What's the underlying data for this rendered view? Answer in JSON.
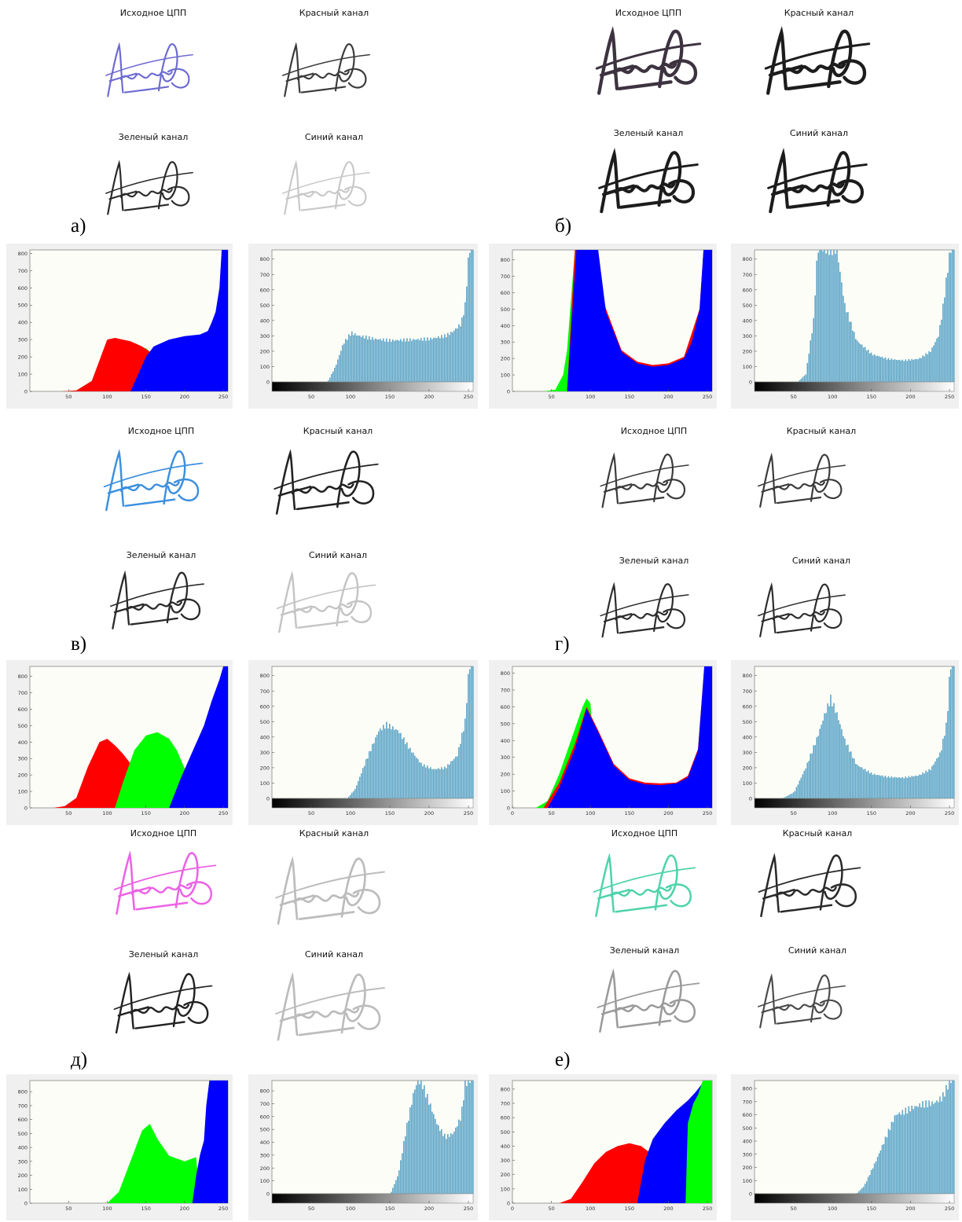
{
  "colors": {
    "red": "#ff0000",
    "green": "#00ff00",
    "blue": "#0000ff",
    "bar": "#5ea6c8",
    "plot_bg": "#fdfdf7",
    "frame_bg": "#f0f0f0"
  },
  "channel_labels": {
    "original": "Исходное ЦПП",
    "red": "Красный канал",
    "green": "Зеленый канал",
    "blue": "Синий канал"
  },
  "signature_colors": {
    "a": {
      "original": "#6d6ad2",
      "red": "#3a3a3a",
      "green": "#2a2a2a",
      "blue": "#c8c8c8"
    },
    "b": {
      "original": "#3d3340",
      "red": "#1c1c1c",
      "green": "#1c1c1c",
      "blue": "#1c1c1c"
    },
    "v": {
      "original": "#3c8fde",
      "red": "#222222",
      "green": "#2a2a2a",
      "blue": "#c4c4c4"
    },
    "g": {
      "original": "#3a3a3a",
      "red": "#3a3a3a",
      "green": "#2c2c2c",
      "blue": "#2c2c2c"
    },
    "d": {
      "original": "#ec62e6",
      "red": "#bcbcbc",
      "green": "#222222",
      "blue": "#bcbcbc"
    },
    "e": {
      "original": "#4fd3aa",
      "red": "#2a2a2a",
      "green": "#9a9a9a",
      "blue": "#4a4a4a"
    }
  },
  "panel_letters": {
    "a": "а)",
    "b": "б)",
    "v": "в)",
    "g": "г)",
    "d": "д)",
    "e": "е)"
  },
  "chart_data": [
    {
      "panel": "а)",
      "type": "area",
      "kind": "rgb",
      "xlim": [
        0,
        256
      ],
      "ylim": [
        0,
        820
      ],
      "x_ticks": [
        50,
        100,
        150,
        200,
        250
      ],
      "y_ticks": [
        0,
        100,
        200,
        300,
        400,
        500,
        600,
        700,
        800
      ],
      "series": [
        {
          "color": "#00ff00",
          "x": [
            0,
            40,
            60,
            80,
            95,
            100,
            110,
            130,
            150,
            155,
            160
          ],
          "y": [
            0,
            0,
            5,
            60,
            220,
            280,
            290,
            270,
            250,
            230,
            0
          ]
        },
        {
          "color": "#ff0000",
          "x": [
            0,
            40,
            60,
            80,
            95,
            100,
            110,
            120,
            130,
            145,
            155,
            160
          ],
          "y": [
            0,
            0,
            5,
            60,
            240,
            300,
            310,
            300,
            290,
            260,
            230,
            0
          ]
        },
        {
          "color": "#0000ff",
          "x": [
            0,
            130,
            150,
            160,
            180,
            200,
            220,
            230,
            235,
            240,
            245,
            248,
            256
          ],
          "y": [
            0,
            0,
            200,
            260,
            300,
            320,
            330,
            350,
            400,
            460,
            600,
            820,
            820
          ]
        }
      ]
    },
    {
      "panel": "а)",
      "type": "bar",
      "kind": "gray",
      "xlim": [
        0,
        256
      ],
      "ylim": [
        0,
        860
      ],
      "x_ticks": [
        50,
        100,
        150,
        200,
        250
      ],
      "y_ticks": [
        0,
        100,
        200,
        300,
        400,
        500,
        600,
        700,
        800
      ],
      "series": [
        {
          "color": "#5ea6c8",
          "x": [
            0,
            70,
            80,
            90,
            100,
            110,
            130,
            150,
            200,
            220,
            230,
            240,
            245,
            250,
            256
          ],
          "y": [
            0,
            0,
            100,
            250,
            320,
            300,
            280,
            270,
            280,
            300,
            330,
            380,
            500,
            860,
            860
          ]
        }
      ]
    },
    {
      "panel": "б)",
      "type": "area",
      "kind": "rgb",
      "xlim": [
        0,
        256
      ],
      "ylim": [
        0,
        860
      ],
      "x_ticks": [
        50,
        100,
        150,
        200,
        250
      ],
      "y_ticks": [
        0,
        100,
        200,
        300,
        400,
        500,
        600,
        700,
        800
      ],
      "series": [
        {
          "color": "#00ff00",
          "x": [
            0,
            40,
            55,
            65,
            70,
            75,
            80,
            100
          ],
          "y": [
            0,
            0,
            10,
            100,
            250,
            550,
            860,
            0
          ]
        },
        {
          "color": "#ff0000",
          "x": [
            0,
            70,
            80,
            100,
            120,
            140,
            160,
            180,
            200,
            220,
            240,
            245,
            256
          ],
          "y": [
            0,
            0,
            860,
            860,
            500,
            250,
            180,
            160,
            170,
            210,
            500,
            860,
            860
          ]
        },
        {
          "color": "#0000ff",
          "x": [
            0,
            70,
            82,
            100,
            110,
            120,
            140,
            160,
            180,
            200,
            220,
            230,
            240,
            245,
            256
          ],
          "y": [
            0,
            0,
            860,
            860,
            860,
            480,
            240,
            170,
            150,
            160,
            200,
            300,
            500,
            860,
            860
          ]
        }
      ]
    },
    {
      "panel": "б)",
      "type": "bar",
      "kind": "gray",
      "xlim": [
        0,
        256
      ],
      "ylim": [
        0,
        860
      ],
      "x_ticks": [
        50,
        100,
        150,
        200,
        250
      ],
      "y_ticks": [
        0,
        100,
        200,
        300,
        400,
        500,
        600,
        700,
        800
      ],
      "series": [
        {
          "color": "#5ea6c8",
          "x": [
            0,
            55,
            65,
            75,
            80,
            100,
            105,
            115,
            130,
            150,
            170,
            190,
            210,
            225,
            235,
            240,
            250,
            256
          ],
          "y": [
            0,
            0,
            50,
            400,
            860,
            860,
            860,
            500,
            270,
            180,
            150,
            140,
            150,
            200,
            300,
            450,
            860,
            860
          ]
        }
      ]
    },
    {
      "panel": "в)",
      "type": "area",
      "kind": "rgb",
      "xlim": [
        0,
        256
      ],
      "ylim": [
        0,
        860
      ],
      "x_ticks": [
        50,
        100,
        150,
        200,
        250
      ],
      "y_ticks": [
        0,
        100,
        200,
        300,
        400,
        500,
        600,
        700,
        800
      ],
      "series": [
        {
          "color": "#ff0000",
          "x": [
            0,
            30,
            45,
            60,
            75,
            90,
            100,
            110,
            120,
            130,
            140,
            135
          ],
          "y": [
            0,
            0,
            10,
            60,
            250,
            400,
            420,
            380,
            330,
            270,
            200,
            0
          ]
        },
        {
          "color": "#00ff00",
          "x": [
            0,
            110,
            120,
            135,
            150,
            165,
            180,
            190,
            200,
            205
          ],
          "y": [
            0,
            0,
            150,
            350,
            440,
            460,
            420,
            350,
            240,
            0
          ]
        },
        {
          "color": "#0000ff",
          "x": [
            0,
            180,
            195,
            210,
            225,
            235,
            245,
            250,
            256
          ],
          "y": [
            0,
            0,
            180,
            340,
            500,
            650,
            780,
            860,
            860
          ]
        }
      ]
    },
    {
      "panel": "в)",
      "type": "bar",
      "kind": "gray",
      "xlim": [
        0,
        256
      ],
      "ylim": [
        0,
        860
      ],
      "x_ticks": [
        50,
        100,
        150,
        200,
        250
      ],
      "y_ticks": [
        0,
        100,
        200,
        300,
        400,
        500,
        600,
        700,
        800
      ],
      "series": [
        {
          "color": "#5ea6c8",
          "x": [
            0,
            95,
            105,
            120,
            135,
            145,
            160,
            175,
            190,
            205,
            220,
            235,
            245,
            250,
            256
          ],
          "y": [
            0,
            0,
            60,
            260,
            440,
            480,
            440,
            320,
            220,
            190,
            200,
            280,
            500,
            860,
            860
          ]
        }
      ]
    },
    {
      "panel": "г)",
      "type": "area",
      "kind": "rgb",
      "xlim": [
        0,
        256
      ],
      "ylim": [
        0,
        840
      ],
      "x_ticks": [
        0,
        50,
        100,
        150,
        200,
        250
      ],
      "y_ticks": [
        0,
        100,
        200,
        300,
        400,
        500,
        600,
        700,
        800
      ],
      "series": [
        {
          "color": "#00ff00",
          "x": [
            0,
            30,
            45,
            60,
            75,
            90,
            95,
            100,
            110
          ],
          "y": [
            0,
            0,
            40,
            200,
            400,
            600,
            650,
            620,
            0
          ]
        },
        {
          "color": "#ff0000",
          "x": [
            0,
            40,
            60,
            80,
            95,
            110,
            130,
            150,
            170,
            190,
            210,
            225,
            238,
            246,
            256
          ],
          "y": [
            0,
            0,
            150,
            380,
            600,
            460,
            260,
            175,
            150,
            145,
            150,
            190,
            350,
            840,
            840
          ]
        },
        {
          "color": "#0000ff",
          "x": [
            0,
            45,
            60,
            80,
            95,
            110,
            130,
            150,
            170,
            190,
            210,
            225,
            238,
            246,
            256
          ],
          "y": [
            0,
            0,
            120,
            350,
            590,
            450,
            250,
            165,
            140,
            135,
            145,
            180,
            340,
            840,
            840
          ]
        }
      ]
    },
    {
      "panel": "г)",
      "type": "bar",
      "kind": "gray",
      "xlim": [
        0,
        256
      ],
      "ylim": [
        0,
        860
      ],
      "x_ticks": [
        50,
        100,
        150,
        200,
        250
      ],
      "y_ticks": [
        0,
        100,
        200,
        300,
        400,
        500,
        600,
        700,
        800
      ],
      "series": [
        {
          "color": "#5ea6c8",
          "x": [
            0,
            35,
            50,
            65,
            80,
            90,
            97,
            105,
            115,
            130,
            150,
            170,
            190,
            210,
            225,
            238,
            246,
            250,
            256
          ],
          "y": [
            0,
            0,
            40,
            200,
            400,
            560,
            650,
            550,
            380,
            220,
            160,
            140,
            135,
            150,
            190,
            300,
            500,
            860,
            860
          ]
        }
      ]
    },
    {
      "panel": "д)",
      "type": "area",
      "kind": "rgb",
      "xlim": [
        0,
        256
      ],
      "ylim": [
        0,
        880
      ],
      "x_ticks": [
        50,
        100,
        150,
        200,
        250
      ],
      "y_ticks": [
        0,
        100,
        200,
        300,
        400,
        500,
        600,
        700,
        800
      ],
      "series": [
        {
          "color": "#00ff00",
          "x": [
            0,
            100,
            115,
            130,
            145,
            155,
            165,
            180,
            200,
            215,
            220
          ],
          "y": [
            0,
            0,
            80,
            300,
            520,
            570,
            460,
            340,
            300,
            330,
            0
          ]
        },
        {
          "color": "#0000ff",
          "x": [
            0,
            210,
            215,
            220,
            225,
            228,
            232,
            256
          ],
          "y": [
            0,
            0,
            200,
            350,
            450,
            700,
            880,
            880
          ]
        }
      ]
    },
    {
      "panel": "д)",
      "type": "bar",
      "kind": "gray",
      "xlim": [
        0,
        256
      ],
      "ylim": [
        0,
        880
      ],
      "x_ticks": [
        50,
        100,
        150,
        200,
        250
      ],
      "y_ticks": [
        0,
        100,
        200,
        300,
        400,
        500,
        600,
        700,
        800
      ],
      "series": [
        {
          "color": "#5ea6c8",
          "x": [
            0,
            150,
            160,
            170,
            180,
            185,
            190,
            200,
            210,
            220,
            230,
            240,
            245,
            250,
            256
          ],
          "y": [
            0,
            0,
            150,
            500,
            800,
            880,
            860,
            700,
            530,
            440,
            470,
            600,
            860,
            880,
            880
          ]
        }
      ]
    },
    {
      "panel": "е)",
      "type": "area",
      "kind": "rgb",
      "xlim": [
        0,
        256
      ],
      "ylim": [
        0,
        860
      ],
      "x_ticks": [
        0,
        50,
        100,
        150,
        200,
        250
      ],
      "y_ticks": [
        0,
        100,
        200,
        300,
        400,
        500,
        600,
        700,
        800
      ],
      "series": [
        {
          "color": "#ff0000",
          "x": [
            0,
            60,
            75,
            90,
            105,
            120,
            135,
            150,
            165,
            175,
            180
          ],
          "y": [
            0,
            0,
            30,
            150,
            280,
            360,
            400,
            420,
            400,
            360,
            0
          ]
        },
        {
          "color": "#0000ff",
          "x": [
            0,
            160,
            170,
            180,
            195,
            210,
            225,
            235,
            245,
            256
          ],
          "y": [
            0,
            0,
            300,
            450,
            560,
            650,
            720,
            780,
            850,
            860
          ]
        },
        {
          "color": "#00ff00",
          "x": [
            0,
            222,
            225,
            232,
            238,
            244,
            248,
            256
          ],
          "y": [
            0,
            0,
            560,
            700,
            760,
            860,
            860,
            860
          ]
        }
      ]
    },
    {
      "panel": "е)",
      "type": "bar",
      "kind": "gray",
      "xlim": [
        0,
        256
      ],
      "ylim": [
        0,
        860
      ],
      "x_ticks": [
        50,
        100,
        150,
        200,
        250
      ],
      "y_ticks": [
        0,
        100,
        200,
        300,
        400,
        500,
        600,
        700,
        800
      ],
      "series": [
        {
          "color": "#5ea6c8",
          "x": [
            0,
            130,
            140,
            155,
            170,
            180,
            190,
            200,
            215,
            230,
            240,
            250,
            256
          ],
          "y": [
            0,
            0,
            60,
            250,
            460,
            600,
            620,
            650,
            680,
            690,
            730,
            860,
            860
          ]
        }
      ]
    }
  ]
}
